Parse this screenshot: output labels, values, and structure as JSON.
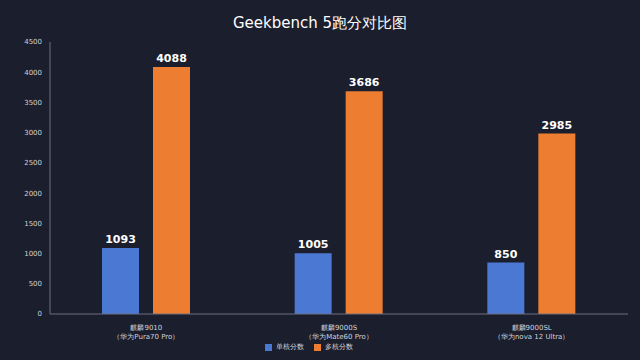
{
  "chart_data": {
    "type": "bar",
    "title": "Geekbench 5跑分对比图",
    "categories": [
      "麒麟9010\n（华为Pura70 Pro）",
      "麒麟9000S\n（华为Mate60 Pro）",
      "麒麟9000SL\n（华为nova 12 Ultra）"
    ],
    "series": [
      {
        "name": "单核分数",
        "color": "#4a78d3",
        "values": [
          1093,
          1005,
          850
        ]
      },
      {
        "name": "多核分数",
        "color": "#ed7d31",
        "values": [
          4088,
          3686,
          2985
        ]
      }
    ],
    "ylim": [
      0,
      4500
    ],
    "yticks": [
      0,
      500,
      1000,
      1500,
      2000,
      2500,
      3000,
      3500,
      4000,
      4500
    ],
    "grid": false,
    "legend": "bottom",
    "data_labels": true
  }
}
